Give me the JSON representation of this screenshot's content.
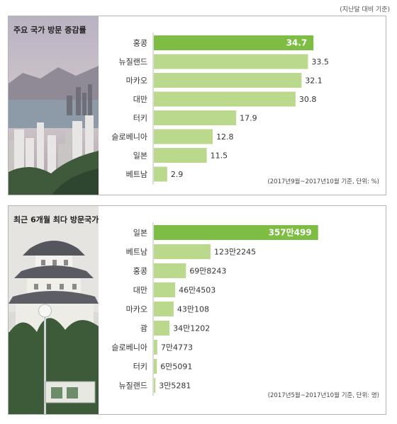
{
  "page_note": "(지난달 대비 기준)",
  "colors": {
    "bar": "#bad98c",
    "bar_highlight": "#7ebd43",
    "axis": "#b8b8b8"
  },
  "chart_data": [
    {
      "type": "bar",
      "orientation": "horizontal",
      "title": "주요 국가 방문 증감률",
      "categories": [
        "홍콩",
        "뉴질랜드",
        "마카오",
        "대만",
        "터키",
        "슬로베니아",
        "일본",
        "베트남"
      ],
      "values": [
        34.7,
        33.5,
        32.1,
        30.8,
        17.9,
        12.8,
        11.5,
        2.9
      ],
      "value_labels": [
        "34.7",
        "33.5",
        "32.1",
        "30.8",
        "17.9",
        "12.8",
        "11.5",
        "2.9"
      ],
      "highlight_index": 0,
      "xlim": [
        0,
        49
      ],
      "note": "(2017년9월~2017년10월 기준, 단위: %)"
    },
    {
      "type": "bar",
      "orientation": "horizontal",
      "title": "최근 6개월 최다 방문국가",
      "categories": [
        "일본",
        "베트남",
        "홍콩",
        "대만",
        "마카오",
        "괌",
        "슬로베니아",
        "터키",
        "뉴질랜드"
      ],
      "values": [
        3570499,
        1232245,
        698243,
        464503,
        430108,
        341202,
        74773,
        65091,
        35281
      ],
      "value_labels": [
        "357만499",
        "123만2245",
        "69만8243",
        "46만4503",
        "43만108",
        "34만1202",
        "7만4773",
        "6만5091",
        "3만5281"
      ],
      "highlight_index": 0,
      "xlim": [
        0,
        4900000
      ],
      "note": "(2017년5월~2017년10월 기준, 단위: 명)"
    }
  ]
}
